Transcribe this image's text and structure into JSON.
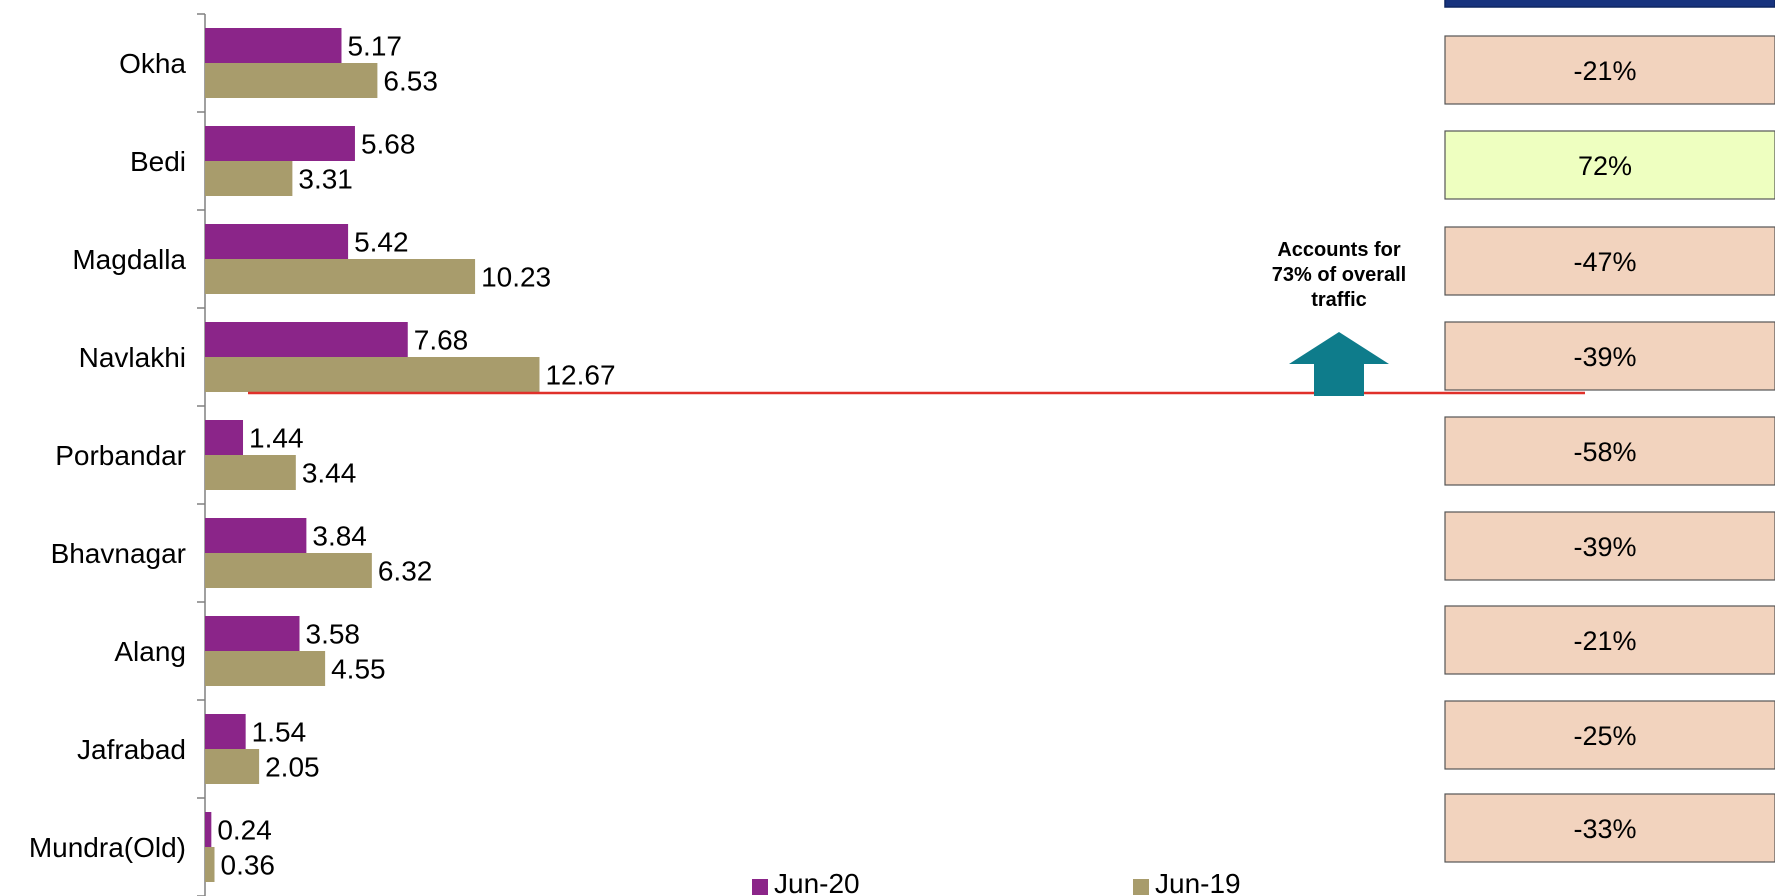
{
  "chart_data": {
    "type": "bar",
    "orientation": "horizontal",
    "categories": [
      "Okha",
      "Bedi",
      "Magdalla",
      "Navlakhi",
      "Porbandar",
      "Bhavnagar",
      "Alang",
      "Jafrabad",
      "Mundra(Old)"
    ],
    "series": [
      {
        "name": "Jun-20",
        "color": "#8B2589",
        "values": [
          5.17,
          5.68,
          5.42,
          7.68,
          1.44,
          3.84,
          3.58,
          1.54,
          0.24
        ]
      },
      {
        "name": "Jun-19",
        "color": "#A89C6C",
        "values": [
          6.53,
          3.31,
          10.23,
          12.67,
          3.44,
          6.32,
          4.55,
          2.05,
          0.36
        ]
      }
    ],
    "value_labels": {
      "Jun-20": [
        "5.17",
        "5.68",
        "5.42",
        "7.68",
        "1.44",
        "3.84",
        "3.58",
        "1.54",
        "0.24"
      ],
      "Jun-19": [
        "6.53",
        "3.31",
        "10.23",
        "12.67",
        "3.44",
        "6.32",
        "4.55",
        "2.05",
        "0.36"
      ]
    },
    "legend": {
      "position": "bottom"
    },
    "growth": [
      "-21%",
      "72%",
      "-47%",
      "-39%",
      "-58%",
      "-39%",
      "-21%",
      "-25%",
      "-33%"
    ],
    "growth_colors": {
      "negative": "#F2D3BE",
      "positive": "#EEFFC0",
      "header": "#17337E"
    },
    "annotation": {
      "lines": [
        "Accounts for",
        "73% of overall",
        "traffic"
      ],
      "arrow_color": "#0E7C8B",
      "line_color": "#E0302A"
    }
  }
}
